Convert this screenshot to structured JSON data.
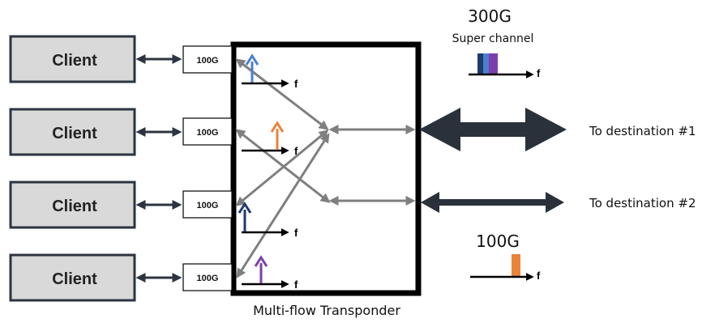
{
  "clients": [
    {
      "label": "Client",
      "port": "100G",
      "carrier_color": "#4a7fd0"
    },
    {
      "label": "Client",
      "port": "100G",
      "carrier_color": "#e8833a"
    },
    {
      "label": "Client",
      "port": "100G",
      "carrier_color": "#1f3a6e"
    },
    {
      "label": "Client",
      "port": "100G",
      "carrier_color": "#7a3fa8"
    }
  ],
  "freq_axis_label": "f",
  "transponder_label": "Multi-flow Transponder",
  "super_channel": {
    "rate": "300G",
    "label": "Super channel",
    "colors": [
      "#1f3a6e",
      "#4a7fd0",
      "#7a3fa8"
    ]
  },
  "single_channel": {
    "rate": "100G",
    "color": "#e8833a"
  },
  "destinations": [
    "To destination #1",
    "To destination #2"
  ],
  "colors": {
    "client_fill": "#d9d9d9",
    "link_arrow": "#2d3440",
    "internal_arrow": "#7f7f7f",
    "dest_arrow": "#2a313b"
  }
}
